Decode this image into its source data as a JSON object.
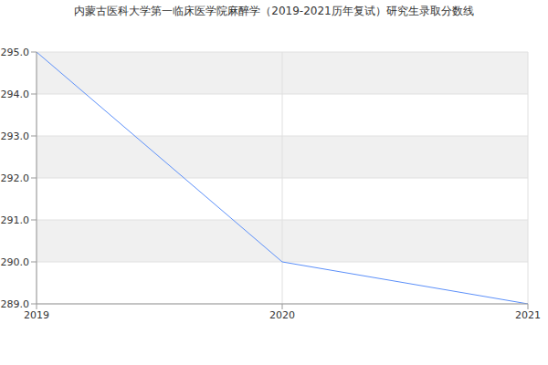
{
  "chart_data": {
    "type": "line",
    "title": "内蒙古医科大学第一临床医学院麻醉学（2019-2021历年复试）研究生录取分数线",
    "x": [
      2019,
      2020,
      2021
    ],
    "values": [
      295,
      290,
      289
    ],
    "color": "#5b8ff9",
    "xlim": [
      2019,
      2021
    ],
    "xticks": [
      2019,
      2020,
      2021
    ],
    "ylim": [
      289,
      295
    ],
    "yticks": [
      {
        "value": 289,
        "label": "289.0"
      },
      {
        "value": 290,
        "label": "290.0"
      },
      {
        "value": 291,
        "label": "291.0"
      },
      {
        "value": 292,
        "label": "292.0"
      },
      {
        "value": 293,
        "label": "293.0"
      },
      {
        "value": 294,
        "label": "294.0"
      },
      {
        "value": 295,
        "label": "295.0"
      }
    ],
    "grid": true
  }
}
